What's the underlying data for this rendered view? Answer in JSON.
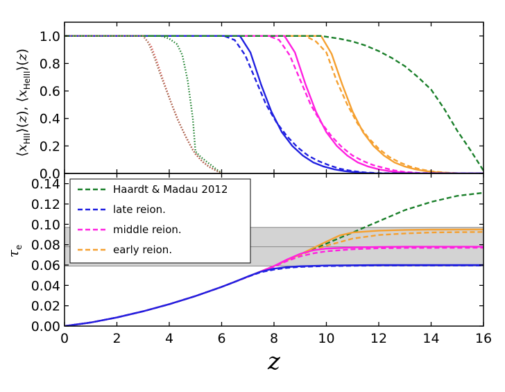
{
  "chart_data": [
    {
      "type": "line",
      "panel": "top",
      "ylabel": "⟨x_HII⟩(z), ⟨x_HeIII⟩(z)",
      "xlim": [
        0,
        16
      ],
      "ylim": [
        0,
        1.1
      ],
      "xticks": [
        "0",
        "2",
        "4",
        "6",
        "8",
        "10",
        "12",
        "14",
        "16"
      ],
      "yticks": [
        "0.0",
        "0.2",
        "0.4",
        "0.6",
        "0.8",
        "1.0"
      ],
      "grid": false,
      "series": [
        {
          "color": "#f5a030",
          "dash": "solid",
          "x": [
            0,
            9.8,
            10.2,
            10.6,
            11.0,
            11.4,
            11.8,
            12.2,
            12.6,
            13.0,
            13.4,
            13.8,
            14.2,
            14.6,
            15.0,
            16
          ],
          "y": [
            1.0,
            1.0,
            0.87,
            0.65,
            0.45,
            0.3,
            0.2,
            0.13,
            0.08,
            0.05,
            0.03,
            0.017,
            0.009,
            0.004,
            0.001,
            0.0
          ]
        },
        {
          "color": "#f5a030",
          "dash": "dashed",
          "x": [
            0,
            9.2,
            9.6,
            10.0,
            10.4,
            10.8,
            11.2,
            11.6,
            12.0,
            12.4,
            12.8,
            13.2,
            13.6,
            14.0,
            14.5,
            15.0,
            16
          ],
          "y": [
            1.0,
            1.0,
            0.96,
            0.88,
            0.67,
            0.5,
            0.36,
            0.26,
            0.18,
            0.12,
            0.08,
            0.05,
            0.03,
            0.016,
            0.007,
            0.002,
            0.0
          ]
        },
        {
          "color": "#ff20e0",
          "dash": "solid",
          "x": [
            0,
            8.4,
            8.8,
            9.2,
            9.6,
            10.0,
            10.4,
            10.8,
            11.2,
            11.6,
            12.0,
            12.4,
            12.8,
            13.2,
            13.6,
            16
          ],
          "y": [
            1.0,
            1.0,
            0.88,
            0.65,
            0.45,
            0.3,
            0.2,
            0.13,
            0.08,
            0.05,
            0.03,
            0.017,
            0.009,
            0.004,
            0.001,
            0.0
          ]
        },
        {
          "color": "#ff20e0",
          "dash": "dashed",
          "x": [
            0,
            7.8,
            8.2,
            8.6,
            9.0,
            9.4,
            9.8,
            10.2,
            10.6,
            11.0,
            11.4,
            11.8,
            12.2,
            12.6,
            13.0,
            13.6,
            16
          ],
          "y": [
            1.0,
            1.0,
            0.97,
            0.86,
            0.68,
            0.5,
            0.37,
            0.27,
            0.19,
            0.13,
            0.09,
            0.06,
            0.04,
            0.022,
            0.011,
            0.003,
            0.0
          ]
        },
        {
          "color": "#2020e0",
          "dash": "solid",
          "x": [
            0,
            6.7,
            7.1,
            7.5,
            7.9,
            8.3,
            8.7,
            9.1,
            9.5,
            9.9,
            10.3,
            10.7,
            11.1,
            11.5,
            11.9,
            16
          ],
          "y": [
            1.0,
            1.0,
            0.88,
            0.65,
            0.45,
            0.3,
            0.2,
            0.13,
            0.08,
            0.05,
            0.03,
            0.017,
            0.009,
            0.004,
            0.001,
            0.0
          ]
        },
        {
          "color": "#2020e0",
          "dash": "dashed",
          "x": [
            0,
            6.1,
            6.5,
            6.9,
            7.3,
            7.7,
            8.1,
            8.5,
            8.9,
            9.3,
            9.7,
            10.1,
            10.5,
            11.0,
            11.5,
            12.0,
            16
          ],
          "y": [
            1.0,
            1.0,
            0.97,
            0.86,
            0.68,
            0.5,
            0.37,
            0.27,
            0.19,
            0.13,
            0.09,
            0.06,
            0.035,
            0.017,
            0.007,
            0.002,
            0.0
          ]
        },
        {
          "color": "#1a7f2a",
          "dash": "dashed",
          "x": [
            0,
            9.8,
            10.5,
            11.0,
            11.5,
            12.0,
            12.5,
            13.0,
            13.5,
            14.0,
            14.5,
            15.0,
            15.5,
            16.0
          ],
          "y": [
            1.0,
            1.0,
            0.98,
            0.96,
            0.93,
            0.89,
            0.84,
            0.78,
            0.7,
            0.61,
            0.47,
            0.31,
            0.17,
            0.02
          ]
        },
        {
          "color": "#1a7f2a",
          "dash": "dotted",
          "x": [
            0,
            3.7,
            4.0,
            4.3,
            4.5,
            4.7,
            4.9,
            5.0,
            5.2,
            5.4,
            5.6,
            5.8,
            5.95,
            6.0
          ],
          "y": [
            1.0,
            1.0,
            0.98,
            0.94,
            0.86,
            0.68,
            0.4,
            0.16,
            0.12,
            0.09,
            0.06,
            0.03,
            0.01,
            0.0
          ]
        },
        {
          "color": "#e05a5a",
          "dash": "dotted",
          "x": [
            0,
            3.0,
            3.3,
            3.5,
            3.8,
            4.1,
            4.4,
            4.7,
            5.0,
            5.3,
            5.6,
            5.9,
            6.0
          ],
          "y": [
            1.0,
            1.0,
            0.93,
            0.83,
            0.66,
            0.5,
            0.36,
            0.24,
            0.14,
            0.08,
            0.04,
            0.01,
            0.0
          ]
        },
        {
          "color": "#a06a50",
          "dash": "dotted",
          "x": [
            0,
            3.0,
            3.2,
            3.4,
            3.7,
            4.0,
            4.3,
            4.6,
            4.9,
            5.2,
            5.5,
            5.8,
            6.0
          ],
          "y": [
            1.0,
            1.0,
            0.95,
            0.86,
            0.7,
            0.55,
            0.4,
            0.28,
            0.17,
            0.1,
            0.05,
            0.02,
            0.0
          ]
        }
      ]
    },
    {
      "type": "line",
      "panel": "bottom",
      "ylabel": "τe",
      "xlabel": "z",
      "xlim": [
        0,
        16
      ],
      "ylim": [
        0,
        0.15
      ],
      "xticks": [
        "0",
        "2",
        "4",
        "6",
        "8",
        "10",
        "12",
        "14",
        "16"
      ],
      "yticks": [
        "0.00",
        "0.02",
        "0.04",
        "0.06",
        "0.08",
        "0.10",
        "0.12",
        "0.14"
      ],
      "grid": false,
      "band": {
        "y0": 0.059,
        "y1": 0.097,
        "center": 0.078,
        "color": "#d3d3d3"
      },
      "legend": {
        "position": "top-left",
        "entries": [
          {
            "label": "Haardt & Madau 2012",
            "color": "#1a7f2a"
          },
          {
            "label": "late reion.",
            "color": "#2020e0"
          },
          {
            "label": "middle reion.",
            "color": "#ff20e0"
          },
          {
            "label": "early reion.",
            "color": "#f5a030"
          }
        ]
      },
      "series": [
        {
          "name": "Haardt & Madau 2012",
          "color": "#1a7f2a",
          "dash": "dashed",
          "x": [
            0,
            1,
            2,
            3,
            4,
            5,
            6,
            7,
            8,
            9,
            10,
            11,
            12,
            13,
            14,
            15,
            16
          ],
          "y": [
            0.0,
            0.0035,
            0.0085,
            0.0145,
            0.0215,
            0.0295,
            0.0385,
            0.0485,
            0.059,
            0.07,
            0.081,
            0.092,
            0.103,
            0.114,
            0.122,
            0.128,
            0.131
          ]
        },
        {
          "name": "early reion.",
          "color": "#f5a030",
          "dash": "dashed",
          "x": [
            0,
            1,
            2,
            3,
            4,
            5,
            6,
            7,
            8,
            9,
            10,
            11,
            12,
            13,
            14,
            15,
            16
          ],
          "y": [
            0.0,
            0.0035,
            0.0085,
            0.0145,
            0.0215,
            0.0295,
            0.0385,
            0.0485,
            0.059,
            0.07,
            0.079,
            0.086,
            0.0895,
            0.091,
            0.092,
            0.0923,
            0.0925
          ]
        },
        {
          "color": "#f5a030",
          "dash": "solid",
          "x": [
            0,
            1,
            2,
            3,
            4,
            5,
            6,
            7,
            8,
            9,
            10,
            10.5,
            11,
            12,
            13,
            14,
            16
          ],
          "y": [
            0.0,
            0.0035,
            0.0085,
            0.0145,
            0.0215,
            0.0295,
            0.0385,
            0.0485,
            0.059,
            0.0705,
            0.083,
            0.089,
            0.092,
            0.0938,
            0.0945,
            0.0948,
            0.095
          ]
        },
        {
          "name": "middle reion.",
          "color": "#ff20e0",
          "dash": "dashed",
          "x": [
            0,
            1,
            2,
            3,
            4,
            5,
            6,
            7,
            8,
            8.5,
            9,
            9.5,
            10,
            11,
            12,
            13,
            16
          ],
          "y": [
            0.0,
            0.0035,
            0.0085,
            0.0145,
            0.0215,
            0.0295,
            0.0385,
            0.0485,
            0.0585,
            0.064,
            0.0685,
            0.0715,
            0.0735,
            0.0755,
            0.0765,
            0.0768,
            0.077
          ]
        },
        {
          "color": "#ff20e0",
          "dash": "solid",
          "x": [
            0,
            1,
            2,
            3,
            4,
            5,
            6,
            7,
            8,
            8.5,
            9,
            9.5,
            10,
            11,
            12,
            13,
            16
          ],
          "y": [
            0.0,
            0.0035,
            0.0085,
            0.0145,
            0.0215,
            0.0295,
            0.0385,
            0.0485,
            0.059,
            0.0655,
            0.071,
            0.0745,
            0.0762,
            0.0773,
            0.0778,
            0.078,
            0.078
          ]
        },
        {
          "name": "late reion.",
          "color": "#2020e0",
          "dash": "dashed",
          "x": [
            0,
            1,
            2,
            3,
            4,
            5,
            6,
            6.5,
            7,
            7.5,
            8,
            8.5,
            9,
            10,
            11,
            12,
            16
          ],
          "y": [
            0.0,
            0.0035,
            0.0085,
            0.0145,
            0.0215,
            0.0295,
            0.0385,
            0.0435,
            0.0485,
            0.053,
            0.0555,
            0.0572,
            0.0582,
            0.059,
            0.0593,
            0.0595,
            0.0595
          ]
        },
        {
          "color": "#2020e0",
          "dash": "solid",
          "x": [
            0,
            1,
            2,
            3,
            4,
            5,
            6,
            6.5,
            7,
            7.5,
            8,
            8.5,
            9,
            10,
            11,
            12,
            16
          ],
          "y": [
            0.0,
            0.0035,
            0.0085,
            0.0145,
            0.0215,
            0.0295,
            0.0385,
            0.0435,
            0.0488,
            0.0535,
            0.0565,
            0.058,
            0.0588,
            0.0595,
            0.0598,
            0.06,
            0.06
          ]
        }
      ]
    }
  ]
}
